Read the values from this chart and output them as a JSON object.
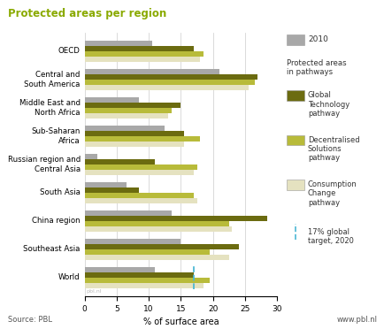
{
  "title": "Protected areas per region",
  "xlabel": "% of surface area",
  "regions": [
    "OECD",
    "Central and\nSouth America",
    "Middle East and\nNorth Africa",
    "Sub-Saharan\nAfrica",
    "Russian region and\nCentral Asia",
    "South Asia",
    "China region",
    "Southeast Asia",
    "World"
  ],
  "val_2010": [
    10.5,
    21.0,
    8.5,
    12.5,
    2.0,
    6.5,
    13.5,
    15.0,
    11.0
  ],
  "val_global_tech": [
    17.0,
    27.0,
    15.0,
    15.5,
    11.0,
    8.5,
    28.5,
    24.0,
    17.0
  ],
  "val_decent_sol": [
    18.5,
    26.5,
    13.5,
    18.0,
    17.5,
    17.0,
    22.5,
    19.5,
    19.5
  ],
  "val_cons_change": [
    18.0,
    25.5,
    13.0,
    15.5,
    17.0,
    17.5,
    23.0,
    22.5,
    18.5
  ],
  "color_2010": "#a8a8a8",
  "color_global_tech": "#6b6b10",
  "color_decent_sol": "#b8bb3a",
  "color_cons_change": "#e5e2c0",
  "color_target_line": "#4db8d4",
  "target_value": 17.0,
  "xlim": [
    0,
    30
  ],
  "xticks": [
    0,
    5,
    10,
    15,
    20,
    25,
    30
  ],
  "source_text": "Source: PBL",
  "website_text": "www.pbl.nl",
  "watermark_text": "pbl.nl",
  "bg_color": "#ffffff",
  "title_color": "#8aaa00"
}
